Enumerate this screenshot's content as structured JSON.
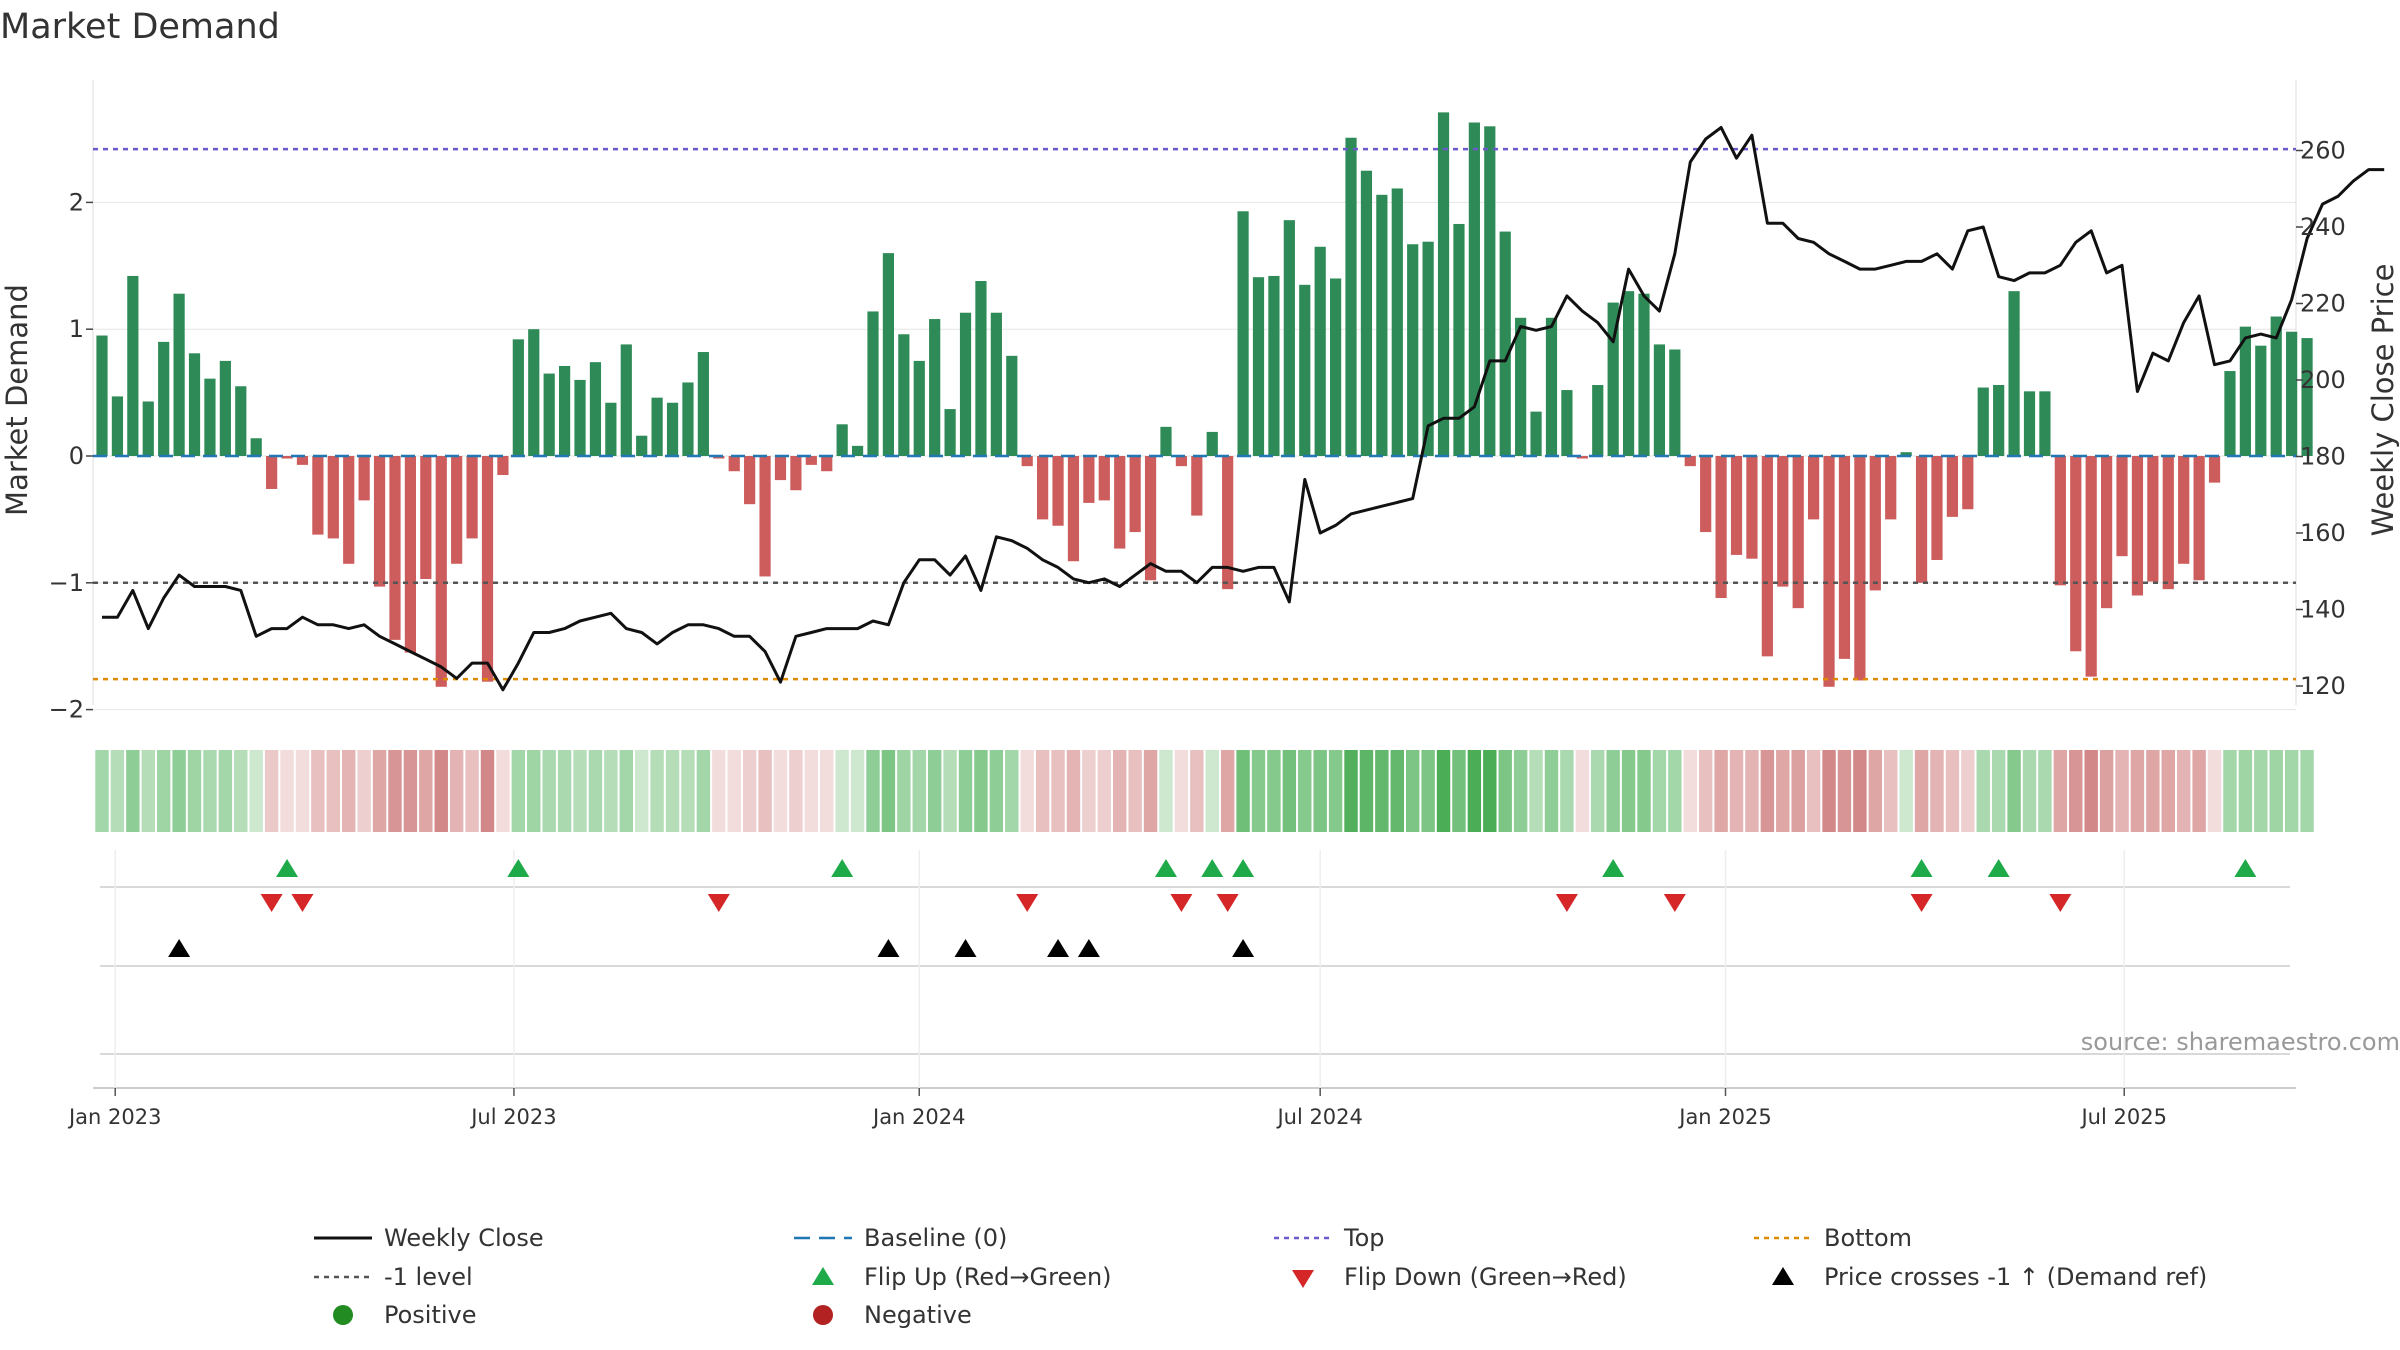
{
  "chart_data": {
    "type": "bar",
    "title": "Market Demand",
    "ylabel_left": "Market Demand",
    "ylabel_right": "Weekly Close Price",
    "ylim_left": [
      -2.2,
      2.9
    ],
    "ylim_right": [
      115,
      273
    ],
    "yticks_left": [
      "2",
      "1",
      "0",
      "−1",
      "−2"
    ],
    "yticks_left_values": [
      2,
      1,
      0,
      -1,
      -2
    ],
    "yticks_right": [
      "260",
      "240",
      "220",
      "200",
      "180",
      "160",
      "140",
      "120"
    ],
    "yticks_right_values": [
      260,
      240,
      220,
      200,
      180,
      160,
      140,
      120
    ],
    "x_start": "2022-12-26",
    "x_step_days": 7,
    "xticks": [
      {
        "label": "Jan 2023",
        "date": "2023-01-01"
      },
      {
        "label": "Jul 2023",
        "date": "2023-07-01"
      },
      {
        "label": "Jan 2024",
        "date": "2024-01-01"
      },
      {
        "label": "Jul 2024",
        "date": "2024-07-01"
      },
      {
        "label": "Jan 2025",
        "date": "2025-01-01"
      },
      {
        "label": "Jul 2025",
        "date": "2025-07-01"
      }
    ],
    "reference_lines": {
      "top": 2.42,
      "minus_one": -1.0,
      "bottom": -1.76,
      "baseline": 0
    },
    "demand": [
      0.95,
      0.47,
      1.42,
      0.43,
      0.9,
      1.28,
      0.81,
      0.61,
      0.75,
      0.55,
      0.14,
      -0.26,
      -0.02,
      -0.07,
      -0.62,
      -0.65,
      -0.85,
      -0.35,
      -1.03,
      -1.45,
      -1.55,
      -0.97,
      -1.82,
      -0.85,
      -0.65,
      -1.78,
      -0.15,
      0.92,
      1.0,
      0.65,
      0.71,
      0.6,
      0.74,
      0.42,
      0.88,
      0.16,
      0.46,
      0.42,
      0.58,
      0.82,
      -0.02,
      -0.12,
      -0.38,
      -0.95,
      -0.19,
      -0.27,
      -0.07,
      -0.12,
      0.25,
      0.08,
      1.14,
      1.6,
      0.96,
      0.75,
      1.08,
      0.37,
      1.13,
      1.38,
      1.13,
      0.79,
      -0.08,
      -0.5,
      -0.55,
      -0.83,
      -0.37,
      -0.35,
      -0.73,
      -0.6,
      -0.98,
      0.23,
      -0.08,
      -0.47,
      0.19,
      -1.05,
      1.93,
      1.41,
      1.42,
      1.86,
      1.35,
      1.65,
      1.4,
      2.51,
      2.25,
      2.06,
      2.11,
      1.67,
      1.69,
      2.71,
      1.83,
      2.63,
      2.6,
      1.77,
      1.09,
      0.35,
      1.09,
      0.52,
      -0.02,
      0.56,
      1.21,
      1.3,
      1.28,
      0.88,
      0.84,
      -0.08,
      -0.6,
      -1.12,
      -0.78,
      -0.81,
      -1.58,
      -1.03,
      -1.2,
      -0.5,
      -1.82,
      -1.6,
      -1.77,
      -1.06,
      -0.5,
      0.03,
      -1.0,
      -0.82,
      -0.48,
      -0.42,
      0.54,
      0.56,
      1.3,
      0.51,
      0.51,
      -1.02,
      -1.54,
      -1.74,
      -1.2,
      -0.79,
      -1.1,
      -0.99,
      -1.05,
      -0.85,
      -0.98,
      -0.21,
      0.67,
      1.02,
      0.87,
      1.1,
      0.98,
      0.93
    ],
    "weekly_close": [
      138,
      138,
      145,
      135,
      143,
      149,
      146,
      146,
      146,
      145,
      133,
      135,
      135,
      138,
      136,
      136,
      135,
      136,
      133,
      131,
      129,
      127,
      125,
      122,
      126,
      126,
      119,
      126,
      134,
      134,
      135,
      137,
      138,
      139,
      135,
      134,
      131,
      134,
      136,
      136,
      135,
      133,
      133,
      129,
      121,
      133,
      134,
      135,
      135,
      135,
      137,
      136,
      147,
      153,
      153,
      149,
      154,
      145,
      159,
      158,
      156,
      153,
      151,
      148,
      147,
      148,
      146,
      149,
      152,
      150,
      150,
      147,
      151,
      151,
      150,
      151,
      151,
      142,
      174,
      160,
      162,
      165,
      166,
      167,
      168,
      169,
      188,
      190,
      190,
      193,
      205,
      205,
      214,
      213,
      214,
      222,
      218,
      215,
      210,
      229,
      222,
      218,
      233,
      257,
      263,
      266,
      258,
      264,
      241,
      241,
      237,
      236,
      233,
      231,
      229,
      229,
      230,
      231,
      231,
      233,
      229,
      239,
      240,
      227,
      226,
      228,
      228,
      230,
      236,
      239,
      228,
      230,
      197,
      207,
      205,
      215,
      222,
      204,
      205,
      211,
      212,
      211,
      221,
      237,
      246,
      248,
      252,
      255,
      255
    ],
    "colour_strip": [
      "#a3d6a8",
      "#b5deb8",
      "#8fcd96",
      "#b5deb8",
      "#9fd4a4",
      "#8fcd96",
      "#9fd4a4",
      "#aad9af",
      "#a3d6a8",
      "#b5deb8",
      "#cde8cf",
      "#ebc9c9",
      "#f2dcdc",
      "#f2dcdc",
      "#e8c0c0",
      "#e8c0c0",
      "#e4b4b4",
      "#edcfcf",
      "#dfa6a6",
      "#d79595",
      "#d79595",
      "#dfa6a6",
      "#d28888",
      "#e4b4b4",
      "#e8c0c0",
      "#d28888",
      "#f2dcdc",
      "#a3d6a8",
      "#9fd4a4",
      "#aad9af",
      "#aad9af",
      "#b5deb8",
      "#aad9af",
      "#b5deb8",
      "#a3d6a8",
      "#cde8cf",
      "#b5deb8",
      "#b5deb8",
      "#b5deb8",
      "#a3d6a8",
      "#f2dcdc",
      "#f2dcdc",
      "#edcfcf",
      "#e8c0c0",
      "#f2dcdc",
      "#edcfcf",
      "#f2dcdc",
      "#f2dcdc",
      "#cde8cf",
      "#cde8cf",
      "#8fcd96",
      "#7cc584",
      "#9fd4a4",
      "#a3d6a8",
      "#8fcd96",
      "#b5deb8",
      "#8fcd96",
      "#86c98d",
      "#8fcd96",
      "#a3d6a8",
      "#f2dcdc",
      "#e8c0c0",
      "#e8c0c0",
      "#e4b4b4",
      "#edcfcf",
      "#edcfcf",
      "#e4b4b4",
      "#e8c0c0",
      "#dfa6a6",
      "#cde8cf",
      "#f2dcdc",
      "#e8c0c0",
      "#cde8cf",
      "#dfa6a6",
      "#6fbf78",
      "#86c98d",
      "#86c98d",
      "#72c07b",
      "#86c98d",
      "#7cc584",
      "#86c98d",
      "#52b05c",
      "#5db567",
      "#64b86d",
      "#64b86d",
      "#7cc584",
      "#7cc584",
      "#4cad57",
      "#72c07b",
      "#4cad57",
      "#4cad57",
      "#7cc584",
      "#8fcd96",
      "#b5deb8",
      "#8fcd96",
      "#aad9af",
      "#f2dcdc",
      "#aad9af",
      "#8fcd96",
      "#86c98d",
      "#86c98d",
      "#a3d6a8",
      "#a3d6a8",
      "#f2dcdc",
      "#e8c0c0",
      "#dfa6a6",
      "#e4b4b4",
      "#e4b4b4",
      "#d79595",
      "#dfa6a6",
      "#dba0a0",
      "#e8c0c0",
      "#d28888",
      "#d79595",
      "#d28888",
      "#dfa6a6",
      "#e8c0c0",
      "#cde8cf",
      "#dfa6a6",
      "#e4b4b4",
      "#e8c0c0",
      "#edcfcf",
      "#aad9af",
      "#aad9af",
      "#86c98d",
      "#aad9af",
      "#aad9af",
      "#dfa6a6",
      "#d79595",
      "#d28888",
      "#dba0a0",
      "#e4b4b4",
      "#dfa6a6",
      "#dfa6a6",
      "#dfa6a6",
      "#e4b4b4",
      "#dfa6a6",
      "#f2dcdc",
      "#a3d6a8",
      "#9fd4a4",
      "#a3d6a8",
      "#9fd4a4",
      "#a3d6a8",
      "#a3d6a8"
    ],
    "flip_up_weeks": [
      12,
      27,
      48,
      69,
      72,
      74,
      98,
      118,
      123,
      139
    ],
    "flip_down_weeks": [
      11,
      13,
      40,
      60,
      70,
      73,
      95,
      102,
      118,
      127
    ],
    "price_cross_weeks": [
      5,
      51,
      56,
      62,
      64,
      74
    ],
    "legend": [
      {
        "label": "Weekly Close",
        "symbol": "line-black"
      },
      {
        "label": "Baseline (0)",
        "symbol": "dash-blue"
      },
      {
        "label": "Top",
        "symbol": "dot-purple"
      },
      {
        "label": "Bottom",
        "symbol": "dot-orange"
      },
      {
        "label": "-1 level",
        "symbol": "dot-gray"
      },
      {
        "label": "Flip Up (Red→Green)",
        "symbol": "tri-up-green"
      },
      {
        "label": "Flip Down (Green→Red)",
        "symbol": "tri-down-red"
      },
      {
        "label": "Price crosses -1 ↑ (Demand ref)",
        "symbol": "tri-up-black"
      },
      {
        "label": "Positive",
        "symbol": "circle-green"
      },
      {
        "label": "Negative",
        "symbol": "circle-red"
      }
    ],
    "source": "source: sharemaestro.com"
  },
  "colors": {
    "positive": "#2e8b57",
    "negative": "#cd5c5c",
    "price": "#111111",
    "baseline": "#1f77b4",
    "top": "#6a5acd",
    "bottom": "#e08a00",
    "minus_one": "#555555",
    "flip_up": "#1faa4a",
    "flip_down": "#d62728",
    "cross": "#000000",
    "legend_positive": "#228b22",
    "legend_negative": "#b22222",
    "grid": "#e6e6e6"
  }
}
